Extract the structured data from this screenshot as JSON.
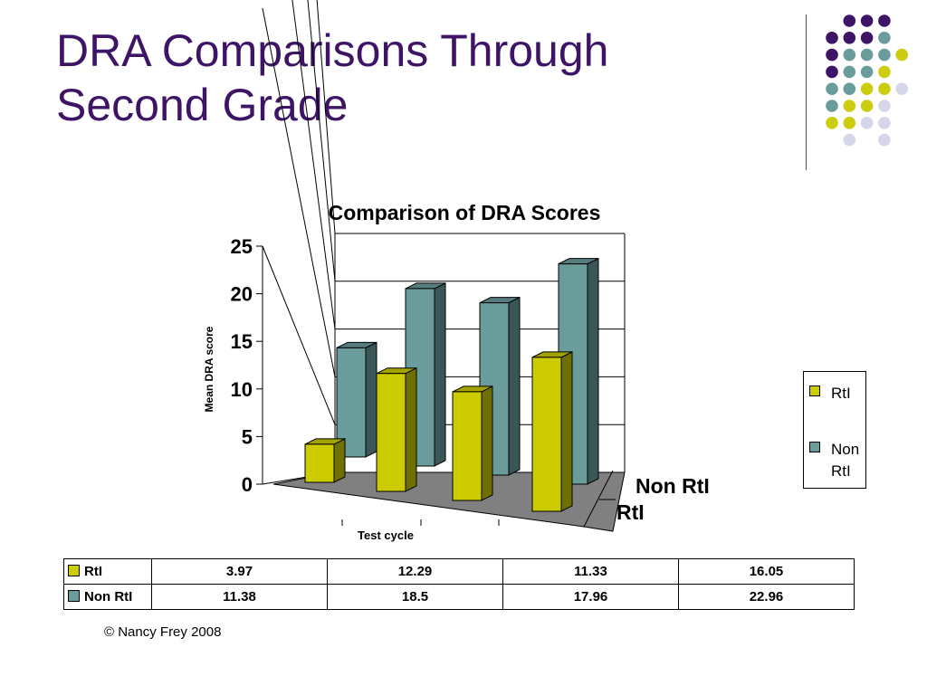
{
  "slide": {
    "title_line_1": "DRA Comparisons Through",
    "title_line_2": "Second Grade",
    "copyright": "© Nancy Frey 2008"
  },
  "colors": {
    "title": "#3d1466",
    "rti": "#cccc00",
    "non_rti": "#6b9c9c",
    "floor": "#808080",
    "dot_purple": "#3d1466",
    "dot_teal": "#6b9c9c",
    "dot_yellow": "#cccc11",
    "dot_lavender": "#d6d6ea"
  },
  "decoration": {
    "dot_rows": [
      [
        "",
        "purple",
        "purple",
        "purple",
        ""
      ],
      [
        "purple",
        "purple",
        "purple",
        "teal",
        ""
      ],
      [
        "purple",
        "teal",
        "teal",
        "teal",
        "yellow"
      ],
      [
        "purple",
        "teal",
        "teal",
        "yellow",
        ""
      ],
      [
        "teal",
        "teal",
        "yellow",
        "yellow",
        "lavender"
      ],
      [
        "teal",
        "yellow",
        "yellow",
        "lavender",
        ""
      ],
      [
        "yellow",
        "yellow",
        "lavender",
        "lavender",
        ""
      ],
      [
        "",
        "lavender",
        "",
        "lavender",
        ""
      ]
    ]
  },
  "chart_data": {
    "type": "bar",
    "title": "Comparison of DRA Scores",
    "xlabel": "Test cycle",
    "ylabel": "Mean DRA score",
    "ylim": [
      0,
      25
    ],
    "yticks": [
      "0",
      "5",
      "10",
      "15",
      "20",
      "25"
    ],
    "categories": [
      "",
      "",
      "",
      ""
    ],
    "depth_labels": [
      "Non RtI",
      "RtI"
    ],
    "series": [
      {
        "name": "RtI",
        "values": [
          3.97,
          12.29,
          11.33,
          16.05
        ],
        "table_values": [
          "3.97",
          "12.29",
          "11.33",
          "16.05"
        ]
      },
      {
        "name": "Non RtI",
        "values": [
          11.38,
          18.5,
          17.96,
          22.96
        ],
        "table_values": [
          "11.38",
          "18.5",
          "17.96",
          "22.96"
        ]
      }
    ],
    "legend_placement": "right",
    "grid": true
  }
}
